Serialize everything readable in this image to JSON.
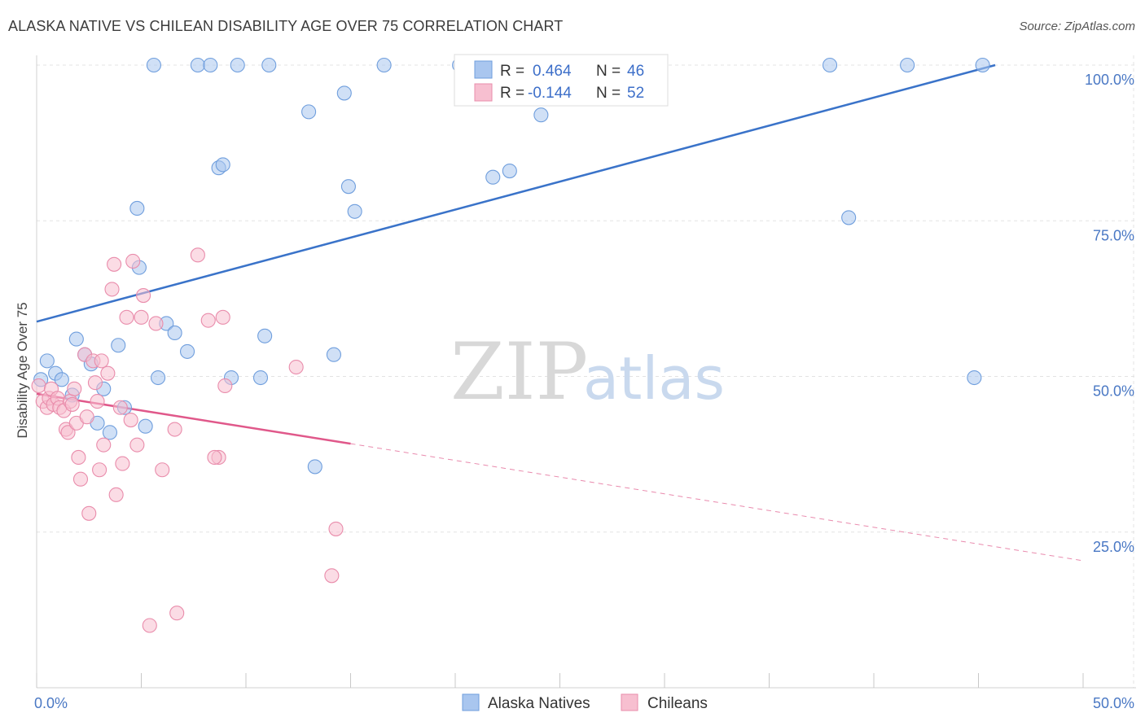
{
  "chart_data": {
    "type": "scatter",
    "title": "ALASKA NATIVE VS CHILEAN DISABILITY AGE OVER 75 CORRELATION CHART",
    "source": "Source: ZipAtlas.com",
    "xlabel": "",
    "ylabel": "Disability Age Over 75",
    "xlim": [
      0,
      50
    ],
    "ylim": [
      0,
      100
    ],
    "x_tick_labels": [
      "0.0%",
      "50.0%"
    ],
    "y_tick_labels": [
      "100.0%",
      "75.0%",
      "50.0%",
      "25.0%"
    ],
    "y_ticks": [
      100,
      75,
      50,
      25
    ],
    "grid": true,
    "watermark": {
      "zip": "ZIP",
      "atlas": "atlas"
    },
    "legend": [
      {
        "r_label": "R =",
        "r": "0.464",
        "n_label": "N =",
        "n": "46",
        "color": "#a9c6ef",
        "stroke": "#6f9edd"
      },
      {
        "r_label": "R =",
        "r": "-0.144",
        "n_label": "N =",
        "n": "52",
        "color": "#f7bfd0",
        "stroke": "#e98cab"
      }
    ],
    "series": [
      {
        "name": "Alaska Natives",
        "color": "#a9c6ef",
        "stroke": "#6f9edd",
        "trend": {
          "x1": 0,
          "y1": 58.8,
          "x2": 45.8,
          "y2": 100,
          "color": "#3a73c9",
          "dashed_to": null
        },
        "points": [
          [
            0.2,
            49.5
          ],
          [
            0.5,
            52.5
          ],
          [
            0.9,
            50.5
          ],
          [
            1.2,
            49.5
          ],
          [
            1.7,
            47.0
          ],
          [
            1.9,
            56.0
          ],
          [
            2.3,
            53.5
          ],
          [
            2.6,
            52.0
          ],
          [
            2.9,
            42.5
          ],
          [
            3.2,
            48.0
          ],
          [
            3.5,
            41.0
          ],
          [
            3.9,
            55.0
          ],
          [
            4.2,
            45.0
          ],
          [
            4.8,
            77.0
          ],
          [
            4.9,
            67.5
          ],
          [
            5.2,
            42.0
          ],
          [
            5.6,
            100.0
          ],
          [
            5.8,
            49.8
          ],
          [
            6.2,
            58.5
          ],
          [
            6.6,
            57.0
          ],
          [
            7.2,
            54.0
          ],
          [
            7.7,
            100.0
          ],
          [
            8.3,
            100.0
          ],
          [
            8.7,
            83.5
          ],
          [
            8.9,
            84.0
          ],
          [
            9.3,
            49.8
          ],
          [
            9.6,
            100.0
          ],
          [
            10.7,
            49.8
          ],
          [
            10.9,
            56.5
          ],
          [
            11.1,
            100.0
          ],
          [
            13.0,
            92.5
          ],
          [
            13.3,
            35.5
          ],
          [
            14.2,
            53.5
          ],
          [
            14.7,
            95.5
          ],
          [
            14.9,
            80.5
          ],
          [
            15.2,
            76.5
          ],
          [
            16.6,
            100.0
          ],
          [
            20.2,
            100.0
          ],
          [
            21.8,
            82.0
          ],
          [
            22.6,
            83.0
          ],
          [
            24.1,
            92.0
          ],
          [
            37.9,
            100.0
          ],
          [
            38.8,
            75.5
          ],
          [
            41.6,
            100.0
          ],
          [
            44.8,
            49.8
          ],
          [
            45.2,
            100.0
          ]
        ]
      },
      {
        "name": "Chileans",
        "color": "#f7bfd0",
        "stroke": "#e98cab",
        "trend": {
          "x1": 0,
          "y1": 47.2,
          "x2": 15,
          "y2": 39.2,
          "color": "#e0588a",
          "dashed_to": {
            "x": 50,
            "y": 20.4
          }
        },
        "points": [
          [
            0.1,
            48.5
          ],
          [
            0.3,
            46.0
          ],
          [
            0.5,
            45.0
          ],
          [
            0.6,
            46.5
          ],
          [
            0.7,
            48.0
          ],
          [
            0.8,
            45.5
          ],
          [
            1.0,
            46.5
          ],
          [
            1.1,
            45.0
          ],
          [
            1.3,
            44.5
          ],
          [
            1.4,
            41.5
          ],
          [
            1.5,
            41.0
          ],
          [
            1.6,
            46.0
          ],
          [
            1.7,
            45.5
          ],
          [
            1.8,
            48.0
          ],
          [
            1.9,
            42.5
          ],
          [
            2.0,
            37.0
          ],
          [
            2.1,
            33.5
          ],
          [
            2.3,
            53.5
          ],
          [
            2.4,
            43.5
          ],
          [
            2.5,
            28.0
          ],
          [
            2.7,
            52.5
          ],
          [
            2.8,
            49.0
          ],
          [
            2.9,
            46.0
          ],
          [
            3.0,
            35.0
          ],
          [
            3.1,
            52.5
          ],
          [
            3.2,
            39.0
          ],
          [
            3.4,
            50.5
          ],
          [
            3.6,
            64.0
          ],
          [
            3.7,
            68.0
          ],
          [
            3.8,
            31.0
          ],
          [
            4.0,
            45.0
          ],
          [
            4.1,
            36.0
          ],
          [
            4.3,
            59.5
          ],
          [
            4.5,
            43.0
          ],
          [
            4.6,
            68.5
          ],
          [
            4.8,
            39.0
          ],
          [
            5.0,
            59.5
          ],
          [
            5.1,
            63.0
          ],
          [
            5.4,
            10.0
          ],
          [
            5.7,
            58.5
          ],
          [
            6.0,
            35.0
          ],
          [
            6.6,
            41.5
          ],
          [
            6.7,
            12.0
          ],
          [
            7.7,
            69.5
          ],
          [
            8.2,
            59.0
          ],
          [
            8.7,
            37.0
          ],
          [
            9.0,
            48.5
          ],
          [
            8.9,
            59.5
          ],
          [
            12.4,
            51.5
          ],
          [
            14.1,
            18.0
          ],
          [
            14.3,
            25.5
          ],
          [
            8.5,
            37.0
          ]
        ]
      }
    ]
  }
}
